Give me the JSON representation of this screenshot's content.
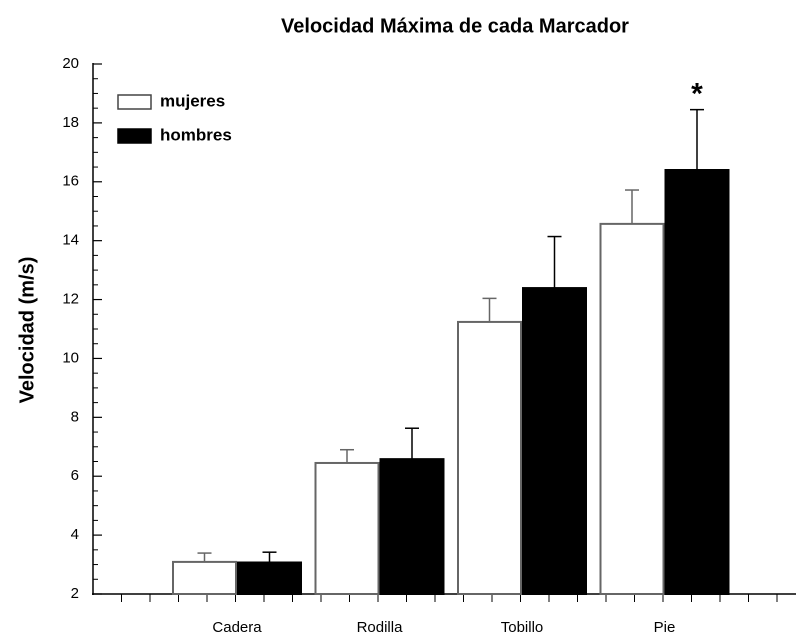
{
  "chart_data": {
    "type": "bar",
    "title": "Velocidad Máxima de cada Marcador",
    "y_label": "Velocidad (m/s)",
    "categories": [
      "Cadera",
      "Rodilla",
      "Tobillo",
      "Pie"
    ],
    "series": [
      {
        "name": "mujeres",
        "color": "#ffffff",
        "edge": "#666666",
        "values": [
          3.09,
          6.45,
          11.24,
          14.57
        ],
        "errors": [
          0.3,
          0.45,
          0.8,
          1.15
        ]
      },
      {
        "name": "hombres",
        "color": "#000000",
        "edge": "#000000",
        "values": [
          3.07,
          6.58,
          12.39,
          16.4
        ],
        "errors": [
          0.35,
          1.05,
          1.75,
          2.05
        ]
      }
    ],
    "annotations": [
      "*"
    ],
    "ylim": [
      2,
      20
    ],
    "yticks": [
      2,
      4,
      6,
      8,
      10,
      12,
      14,
      16,
      18,
      20
    ],
    "legend": "upper-left"
  }
}
